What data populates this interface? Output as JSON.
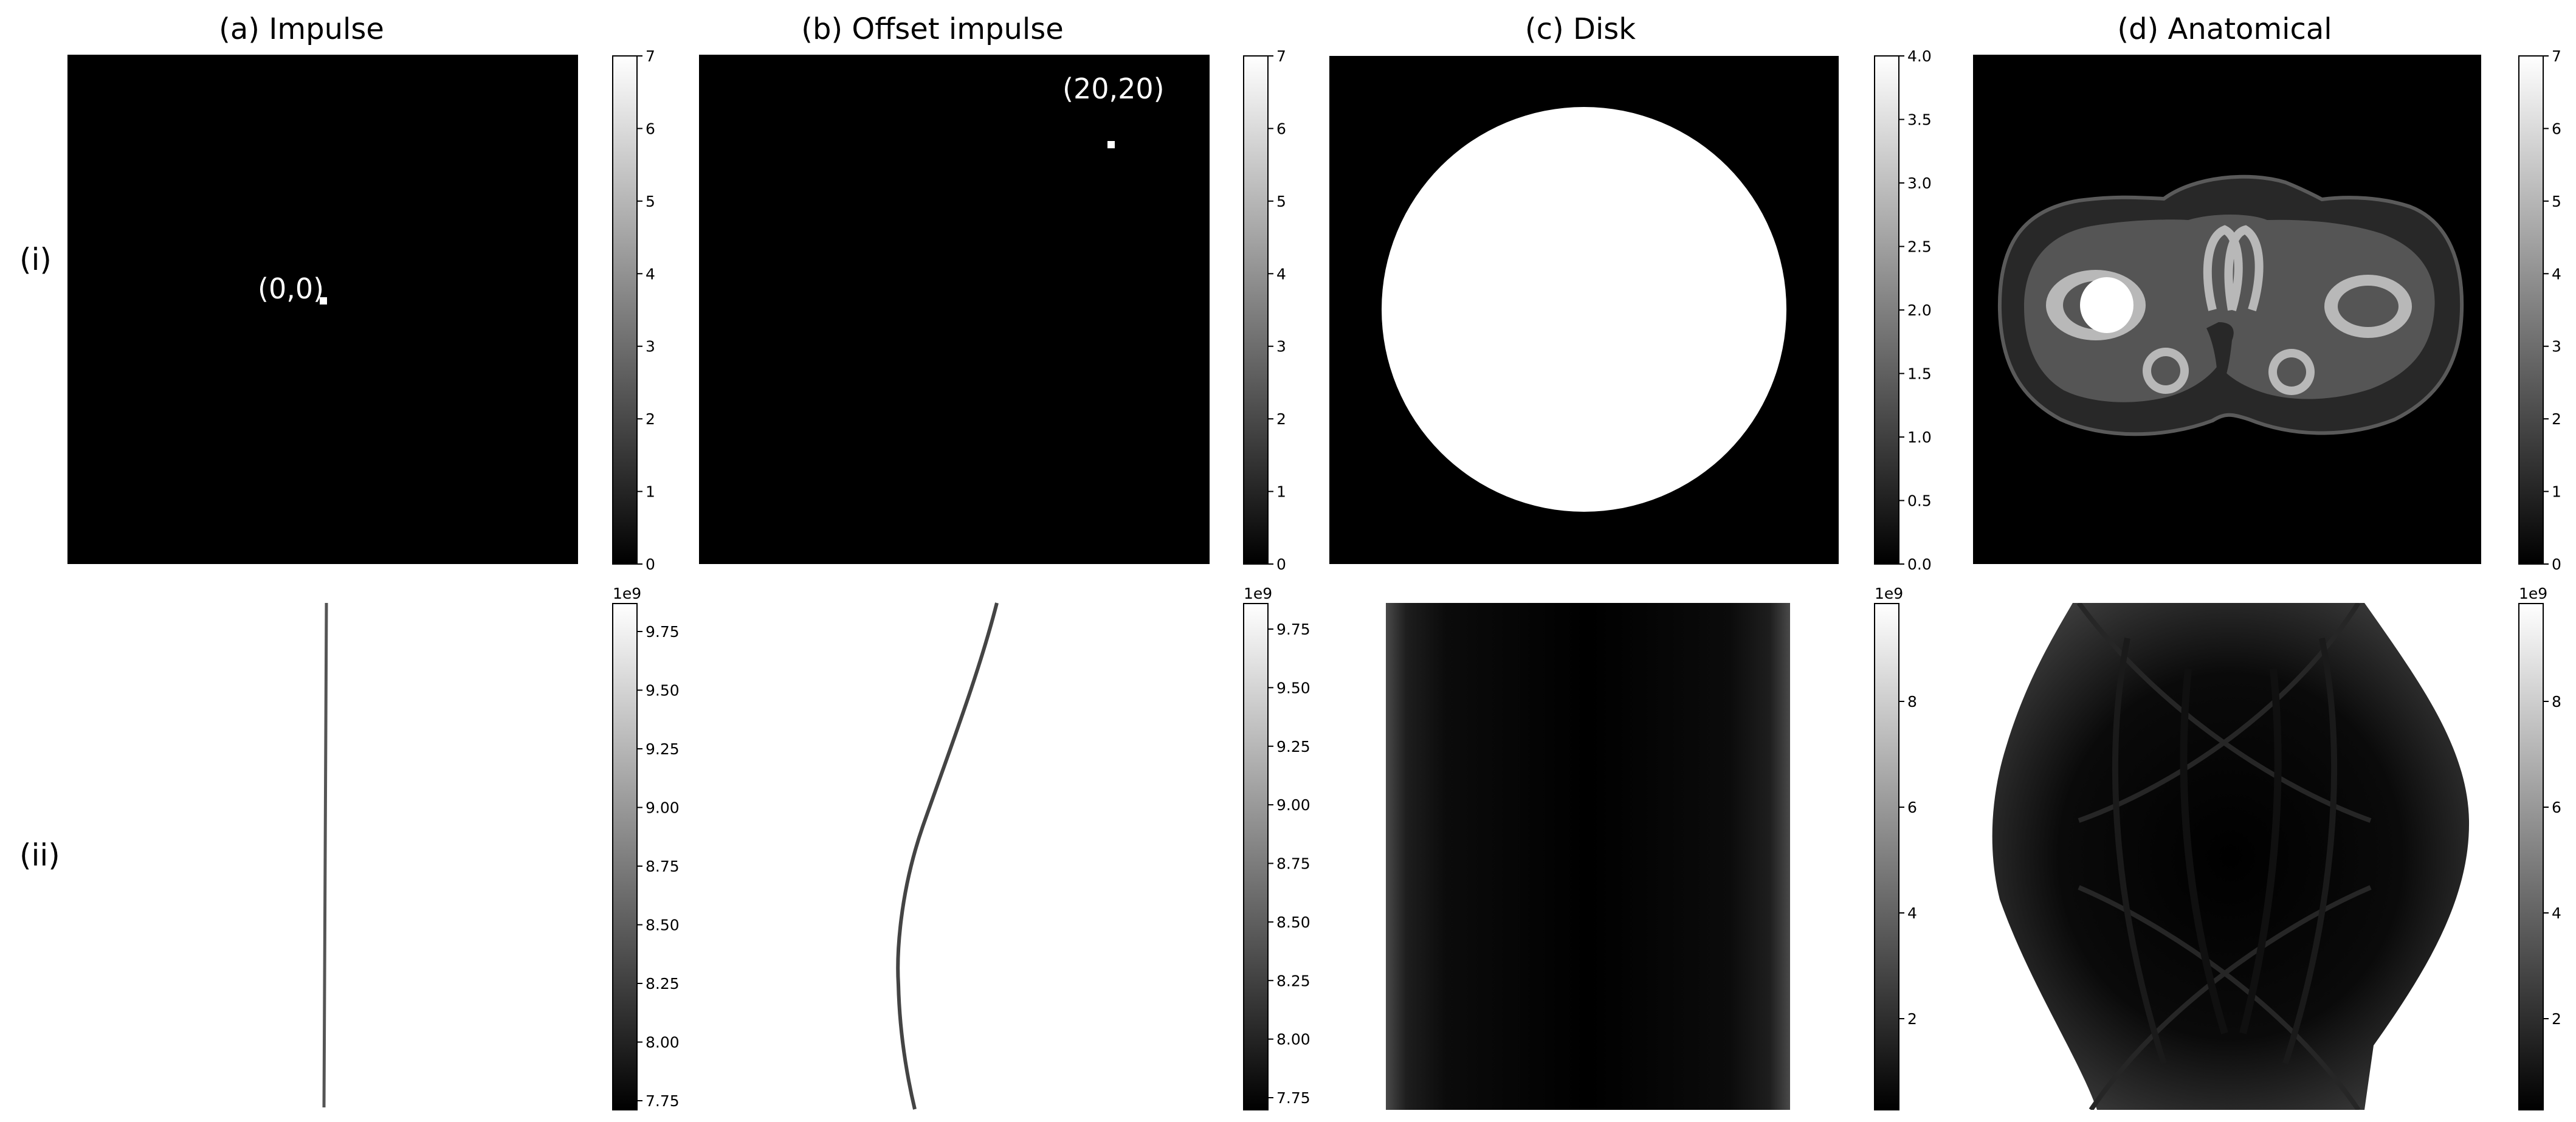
{
  "figure": {
    "columns": [
      {
        "title": "(a) Impulse"
      },
      {
        "title": "(b) Offset impulse"
      },
      {
        "title": "(c) Disk"
      },
      {
        "title": "(d) Anatomical"
      }
    ],
    "rows": [
      {
        "label": "(i)"
      },
      {
        "label": "(ii)"
      }
    ],
    "annotations": {
      "impulse": "(0,0)",
      "offset_impulse": "(20,20)"
    },
    "colorbars": [
      {
        "id": "a-i",
        "ticks": [
          "0",
          "1",
          "2",
          "3",
          "4",
          "5",
          "6",
          "7"
        ]
      },
      {
        "id": "b-i",
        "ticks": [
          "0",
          "1",
          "2",
          "3",
          "4",
          "5",
          "6",
          "7"
        ]
      },
      {
        "id": "c-i",
        "ticks": [
          "0.0",
          "0.5",
          "1.0",
          "1.5",
          "2.0",
          "2.5",
          "3.0",
          "3.5",
          "4.0"
        ]
      },
      {
        "id": "d-i",
        "ticks": [
          "0",
          "1",
          "2",
          "3",
          "4",
          "5",
          "6",
          "7"
        ]
      },
      {
        "id": "a-ii",
        "exponent": "1e9",
        "ticks": [
          "7.75",
          "8.00",
          "8.25",
          "8.50",
          "8.75",
          "9.00",
          "9.25",
          "9.50",
          "9.75"
        ]
      },
      {
        "id": "b-ii",
        "exponent": "1e9",
        "ticks": [
          "7.75",
          "8.00",
          "8.25",
          "8.50",
          "8.75",
          "9.00",
          "9.25",
          "9.50",
          "9.75"
        ]
      },
      {
        "id": "c-ii",
        "exponent": "1e9",
        "ticks": [
          "2",
          "4",
          "6",
          "8"
        ]
      },
      {
        "id": "d-ii",
        "exponent": "1e9",
        "ticks": [
          "2",
          "4",
          "6",
          "8"
        ]
      }
    ],
    "colors": {
      "background": "#ffffff",
      "image_black": "#000000",
      "image_white": "#ffffff"
    }
  }
}
